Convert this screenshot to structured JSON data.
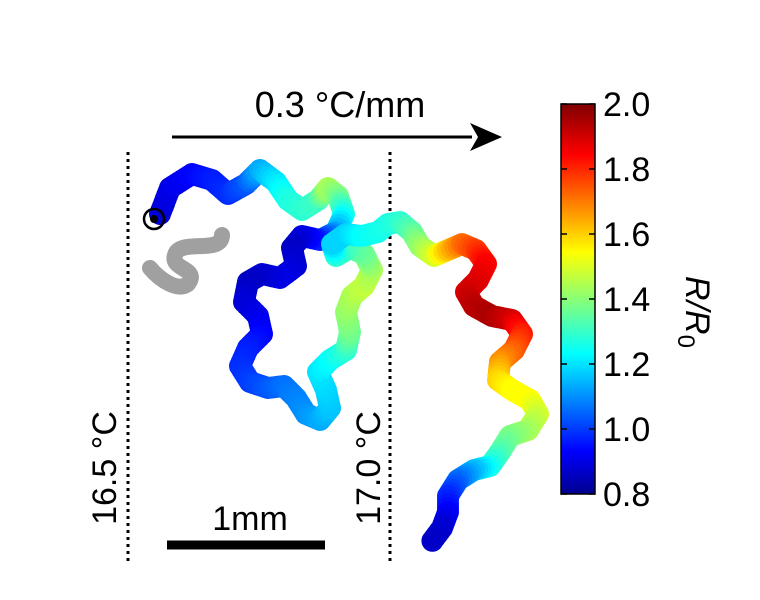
{
  "gradient": {
    "label": "0.3 °C/mm"
  },
  "isotherms": [
    {
      "label": "16.5 °C"
    },
    {
      "label": "17.0 °C"
    }
  ],
  "scale_bar": {
    "label": "1mm"
  },
  "colorbar": {
    "min": 0.8,
    "max": 2.0,
    "ticks": [
      "0.8",
      "1.0",
      "1.2",
      "1.4",
      "1.6",
      "1.8",
      "2.0"
    ],
    "label_main": "R/R",
    "label_sub": "0",
    "colormap": "jet",
    "colors": [
      "#00008f",
      "#0000ff",
      "#00ffff",
      "#ffff00",
      "#ff0000",
      "#800000"
    ]
  },
  "worm_colors": {
    "start_marker": "#000000",
    "initial_shape": "#a0a0a0"
  }
}
